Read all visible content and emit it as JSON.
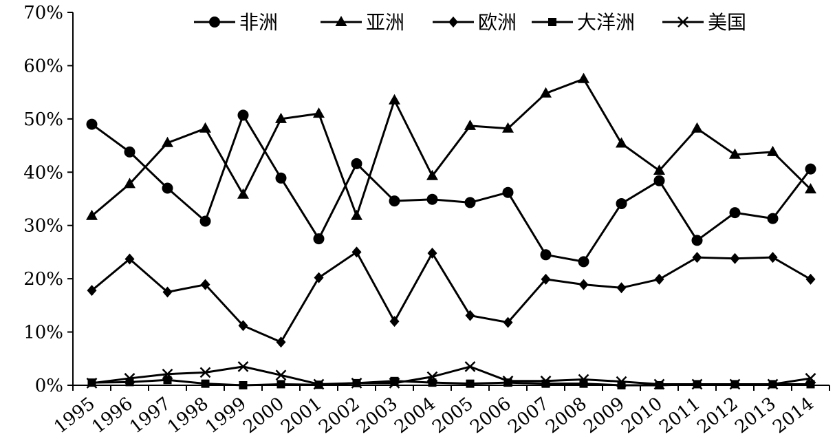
{
  "chart_data": {
    "type": "line",
    "title": "",
    "xlabel": "",
    "ylabel": "",
    "x": [
      "1995",
      "1996",
      "1997",
      "1998",
      "1999",
      "2000",
      "2001",
      "2002",
      "2003",
      "2004",
      "2005",
      "2006",
      "2007",
      "2008",
      "2009",
      "2010",
      "2011",
      "2012",
      "2013",
      "2014"
    ],
    "ylim": [
      0,
      70
    ],
    "yticks": [
      0,
      10,
      20,
      30,
      40,
      50,
      60,
      70
    ],
    "ytick_labels": [
      "0%",
      "10%",
      "20%",
      "30%",
      "40%",
      "50%",
      "60%",
      "70%"
    ],
    "grid": false,
    "legend_position": "top",
    "series": [
      {
        "name": "非洲",
        "marker": "circle",
        "values": [
          49,
          43.8,
          37,
          30.8,
          50.7,
          38.9,
          27.5,
          41.6,
          34.6,
          34.9,
          34.3,
          36.2,
          24.5,
          23.2,
          34.1,
          38.4,
          27.2,
          32.4,
          31.3,
          40.6
        ]
      },
      {
        "name": "亚洲",
        "marker": "triangle",
        "values": [
          31.8,
          37.8,
          45.5,
          48.2,
          35.8,
          50,
          51,
          31.8,
          53.5,
          39.3,
          48.7,
          48.2,
          54.8,
          57.5,
          45.4,
          40.3,
          48.2,
          43.3,
          43.8,
          36.8
        ]
      },
      {
        "name": "欧洲",
        "marker": "diamond",
        "values": [
          17.8,
          23.7,
          17.5,
          18.9,
          11.2,
          8.1,
          20.2,
          25,
          12,
          24.8,
          13.1,
          11.8,
          19.9,
          18.9,
          18.3,
          19.9,
          24,
          23.8,
          24,
          19.9
        ]
      },
      {
        "name": "大洋洲",
        "marker": "square",
        "values": [
          0.5,
          0.6,
          1,
          0.3,
          0,
          0.2,
          0.1,
          0.4,
          0.8,
          0.5,
          0.3,
          0.5,
          0.3,
          0.3,
          0,
          0,
          0.2,
          0.2,
          0.2,
          0.2
        ]
      },
      {
        "name": "美国",
        "marker": "x",
        "values": [
          0.4,
          1.3,
          2.1,
          2.4,
          3.5,
          1.9,
          0.2,
          0.4,
          0.4,
          1.6,
          3.5,
          0.8,
          0.8,
          1.1,
          0.7,
          0.2,
          0.2,
          0.2,
          0.2,
          1.3
        ]
      }
    ]
  }
}
